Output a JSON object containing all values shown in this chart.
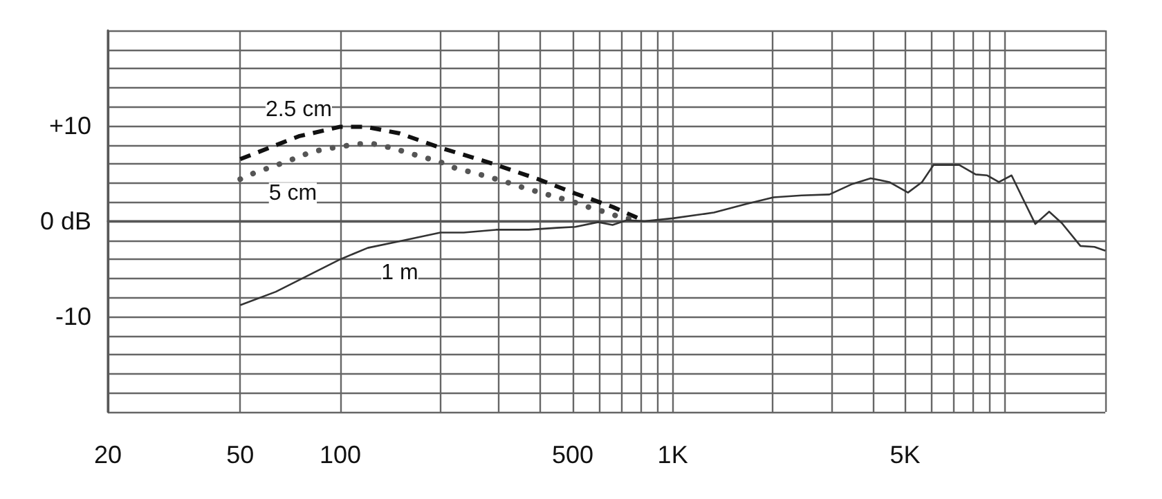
{
  "chart_data": {
    "type": "line",
    "xlim": [
      20,
      20000
    ],
    "ylim": [
      -20,
      20
    ],
    "log": "x",
    "grid": true,
    "legend": false,
    "marker": "none",
    "xticks": [
      {
        "value": 20,
        "label": "20"
      },
      {
        "value": 50,
        "label": "50"
      },
      {
        "value": 100,
        "label": "100"
      },
      {
        "value": 200,
        "label": null
      },
      {
        "value": 300,
        "label": null
      },
      {
        "value": 400,
        "label": null
      },
      {
        "value": 500,
        "label": "500"
      },
      {
        "value": 600,
        "label": null
      },
      {
        "value": 700,
        "label": null
      },
      {
        "value": 800,
        "label": null
      },
      {
        "value": 900,
        "label": null
      },
      {
        "value": 1000,
        "label": "1K"
      },
      {
        "value": 2000,
        "label": null
      },
      {
        "value": 3000,
        "label": null
      },
      {
        "value": 4000,
        "label": null
      },
      {
        "value": 5000,
        "label": "5K"
      },
      {
        "value": 6000,
        "label": null
      },
      {
        "value": 7000,
        "label": null
      },
      {
        "value": 8000,
        "label": null
      },
      {
        "value": 9000,
        "label": null
      },
      {
        "value": 10000,
        "label": null
      },
      {
        "value": 20000,
        "label": null
      }
    ],
    "yticks": [
      {
        "value": -20,
        "label": null
      },
      {
        "value": -18,
        "label": null
      },
      {
        "value": -16,
        "label": null
      },
      {
        "value": -14,
        "label": null
      },
      {
        "value": -12,
        "label": null
      },
      {
        "value": -10,
        "label": "-10"
      },
      {
        "value": -8,
        "label": null
      },
      {
        "value": -6,
        "label": null
      },
      {
        "value": -4,
        "label": null
      },
      {
        "value": -2,
        "label": null
      },
      {
        "value": 0,
        "label": "0 dB"
      },
      {
        "value": 2,
        "label": null
      },
      {
        "value": 4,
        "label": null
      },
      {
        "value": 6,
        "label": null
      },
      {
        "value": 8,
        "label": null
      },
      {
        "value": 10,
        "label": "+10"
      },
      {
        "value": 12,
        "label": null
      },
      {
        "value": 14,
        "label": null
      },
      {
        "value": 16,
        "label": null
      },
      {
        "value": 18,
        "label": null
      },
      {
        "value": 20,
        "label": null
      }
    ],
    "series": [
      {
        "name": "2.5 cm",
        "color": "#111111",
        "line_style": "dashed",
        "x": [
          50,
          75,
          100,
          119,
          151,
          200,
          283,
          394,
          509,
          659,
          800
        ],
        "values": [
          6.5,
          8.9,
          9.9,
          9.9,
          9.2,
          7.7,
          6.1,
          4.4,
          2.9,
          1.5,
          0.2
        ]
      },
      {
        "name": "5 cm",
        "color": "#555555",
        "line_style": "dotted",
        "x": [
          50,
          55.5,
          63.5,
          72,
          81,
          91,
          100,
          112,
          126,
          142,
          159,
          178,
          200,
          224,
          251,
          282,
          316,
          356,
          400,
          449,
          504,
          566,
          634,
          711,
          800
        ],
        "values": [
          4.4,
          5.1,
          5.8,
          6.5,
          7.2,
          7.6,
          7.8,
          8.1,
          8.1,
          7.7,
          7.2,
          6.7,
          6.2,
          5.5,
          5.1,
          4.6,
          4.1,
          3.5,
          3.0,
          2.5,
          2.0,
          1.4,
          0.9,
          0.3,
          0.2
        ]
      },
      {
        "name": "1 m",
        "color": "#333333",
        "line_style": "solid",
        "x": [
          50,
          64,
          80,
          100,
          121,
          151,
          200,
          235,
          294,
          369,
          449,
          509,
          597,
          659,
          727,
          823,
          1000,
          1330,
          1660,
          2010,
          2440,
          2960,
          3470,
          3940,
          4480,
          5100,
          5620,
          6090,
          7270,
          8150,
          8830,
          9570,
          10450,
          11250,
          12320,
          13560,
          14800,
          16840,
          18560,
          20000
        ],
        "values": [
          -8.8,
          -7.4,
          -5.7,
          -4.0,
          -2.8,
          -2.1,
          -1.2,
          -1.2,
          -0.9,
          -0.9,
          -0.7,
          -0.6,
          -0.1,
          -0.4,
          0.1,
          0.0,
          0.3,
          0.9,
          1.8,
          2.5,
          2.7,
          2.8,
          3.9,
          4.5,
          4.1,
          3.0,
          4.1,
          5.9,
          5.9,
          4.9,
          4.8,
          4.1,
          4.8,
          2.5,
          -0.3,
          1.0,
          -0.2,
          -2.6,
          -2.7,
          -3.1
        ]
      }
    ]
  }
}
